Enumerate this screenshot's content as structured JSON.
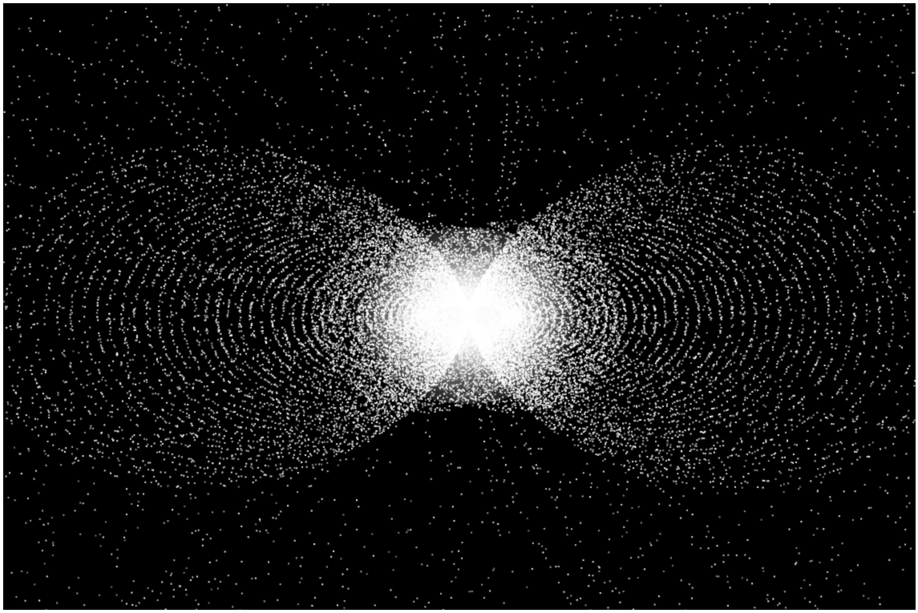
{
  "scene": {
    "subject": "dipole-field-particle-visualization",
    "colors": {
      "background": "#000000",
      "frame": "#ffffff",
      "particle": "#ffffff"
    },
    "field": {
      "type": "dipole",
      "orientation": "horizontal",
      "lobes": 2,
      "core_glow": true
    }
  }
}
